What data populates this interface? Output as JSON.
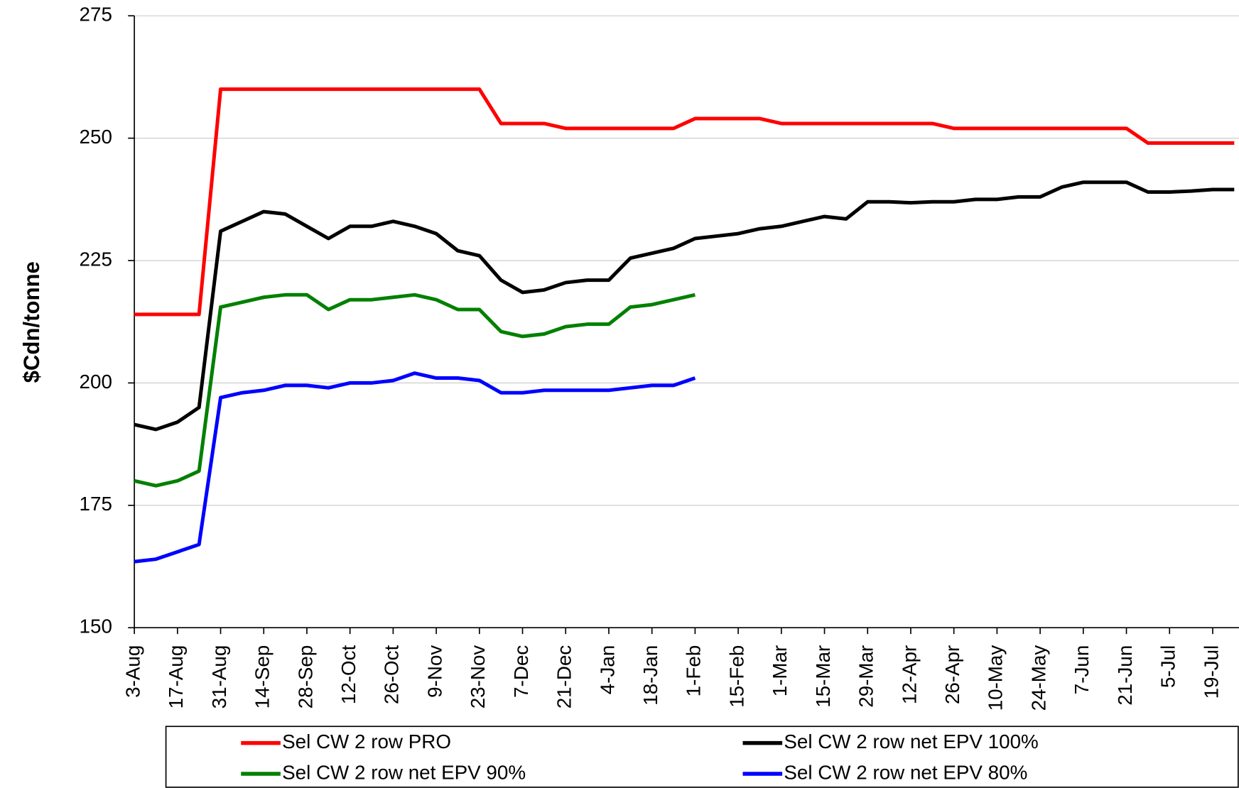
{
  "chart_data": {
    "type": "line",
    "y_label": "$Cdn/tonne",
    "categories": [
      "3-Aug",
      null,
      "17-Aug",
      null,
      "31-Aug",
      null,
      "14-Sep",
      null,
      "28-Sep",
      null,
      "12-Oct",
      null,
      "26-Oct",
      null,
      "9-Nov",
      null,
      "23-Nov",
      null,
      "7-Dec",
      null,
      "21-Dec",
      null,
      "4-Jan",
      null,
      "18-Jan",
      null,
      "1-Feb",
      null,
      "15-Feb",
      null,
      "1-Mar",
      null,
      "15-Mar",
      null,
      "29-Mar",
      null,
      "12-Apr",
      null,
      "26-Apr",
      null,
      "10-May",
      null,
      "24-May",
      null,
      "7-Jun",
      null,
      "21-Jun",
      null,
      "5-Jul",
      null,
      "19-Jul",
      null
    ],
    "series": [
      {
        "name": "Sel CW 2 row PRO",
        "color": "#ff0000",
        "values": [
          214,
          214,
          214,
          214,
          260,
          260,
          260,
          260,
          260,
          260,
          260,
          260,
          260,
          260,
          260,
          260,
          260,
          253,
          253,
          253,
          252,
          252,
          252,
          252,
          252,
          252,
          254,
          254,
          254,
          254,
          253,
          253,
          253,
          253,
          253,
          253,
          253,
          253,
          252,
          252,
          252,
          252,
          252,
          252,
          252,
          252,
          252,
          249,
          249,
          249,
          249,
          249
        ]
      },
      {
        "name": "Sel CW 2 row net EPV 100%",
        "color": "#000000",
        "values": [
          191.5,
          190.5,
          192,
          195,
          231,
          233,
          235,
          234.5,
          232,
          229.5,
          232,
          232,
          233,
          232,
          230.5,
          227,
          226,
          221,
          218.5,
          219,
          220.5,
          221,
          221,
          225.5,
          226.5,
          227.5,
          229.5,
          230,
          230.5,
          231.5,
          232,
          233,
          234,
          233.5,
          237,
          237,
          236.8,
          237,
          237,
          237.5,
          237.5,
          238,
          238,
          240,
          241,
          241,
          241,
          239,
          239,
          239.2,
          239.5,
          239.5
        ]
      },
      {
        "name": "Sel CW 2 row net EPV 90%",
        "color": "#008000",
        "values": [
          180,
          179,
          180,
          182,
          215.5,
          216.5,
          217.5,
          218,
          218,
          215,
          217,
          217,
          217.5,
          218,
          217,
          215,
          215,
          210.5,
          209.5,
          210,
          211.5,
          212,
          212,
          215.5,
          216,
          217,
          218,
          null,
          null,
          null,
          null,
          null,
          null,
          null,
          null,
          null,
          null,
          null,
          null,
          null,
          null,
          null,
          null,
          null,
          null,
          null,
          null,
          null,
          null,
          null,
          null,
          null
        ]
      },
      {
        "name": "Sel CW 2 row net EPV 80%",
        "color": "#0000ff",
        "values": [
          163.5,
          164,
          165.5,
          167,
          197,
          198,
          198.5,
          199.5,
          199.5,
          199,
          200,
          200,
          200.5,
          202,
          201,
          201,
          200.5,
          198,
          198,
          198.5,
          198.5,
          198.5,
          198.5,
          199,
          199.5,
          199.5,
          201,
          null,
          null,
          null,
          null,
          null,
          null,
          null,
          null,
          null,
          null,
          null,
          null,
          null,
          null,
          null,
          null,
          null,
          null,
          null,
          null,
          null,
          null,
          null,
          null,
          null
        ]
      }
    ],
    "ylim": [
      150,
      275
    ],
    "yticks": [
      150,
      175,
      200,
      225,
      250,
      275
    ],
    "grid": true,
    "legend": "bottom"
  }
}
